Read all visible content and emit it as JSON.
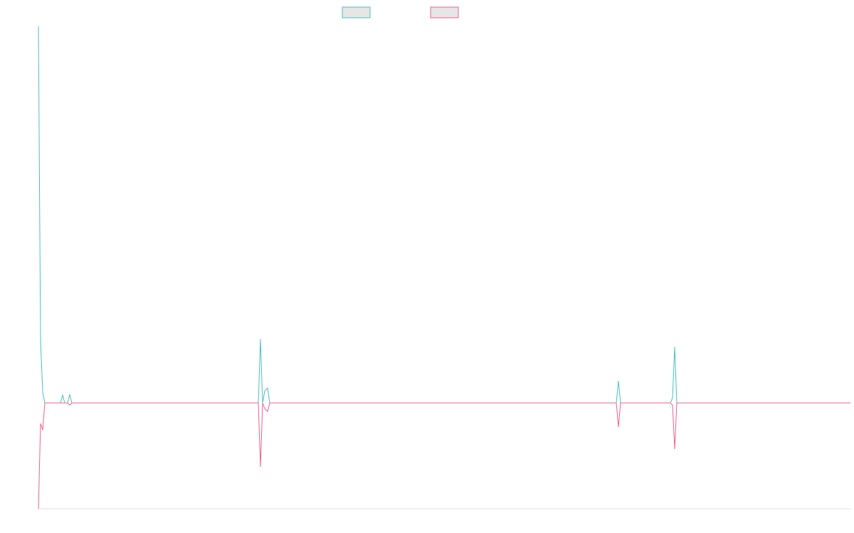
{
  "chart_data": {
    "type": "line",
    "x": [
      0,
      3,
      6,
      9,
      31,
      34,
      37,
      41,
      44,
      47,
      309,
      312,
      315,
      318,
      322,
      325,
      812,
      815,
      818,
      888,
      891,
      894,
      897,
      1141
    ],
    "series": [
      {
        "color": "#4bbfc0",
        "values": [
          530,
          87,
          15,
          0,
          0,
          11,
          0,
          0,
          12,
          0,
          0,
          90,
          0,
          17,
          21,
          0,
          0,
          31,
          0,
          0,
          7,
          79,
          0,
          0
        ]
      },
      {
        "color": "#f0608a",
        "values": [
          -149,
          -29,
          -38,
          0,
          0,
          0,
          0,
          0,
          -3,
          0,
          0,
          -90,
          0,
          -8,
          -12,
          0,
          0,
          -34,
          0,
          0,
          -3,
          -65,
          0,
          0
        ]
      }
    ],
    "xlim": [
      0,
      1141
    ],
    "ylim": [
      -149,
      530
    ],
    "legend": "top"
  }
}
